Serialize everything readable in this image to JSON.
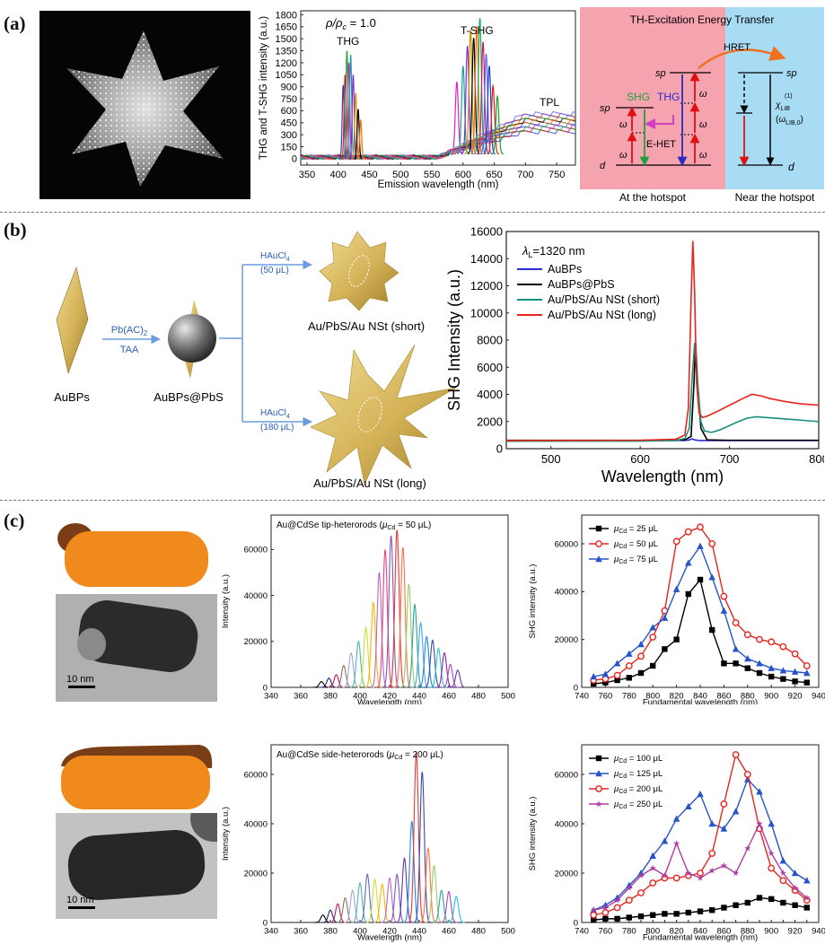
{
  "panels": {
    "a": {
      "label": "(a)",
      "spectrum": {
        "ylabel": "THG and T-SHG intensity (a.u.)",
        "xlabel": "Emission wavelength (nm)",
        "rho_label": "ρ/ρ",
        "rho_sub": "c",
        "rho_value": " = 1.0",
        "annotations": [
          "THG",
          "T-SHG",
          "TPL"
        ]
      },
      "energy": {
        "title": "TH-Excitation Energy Transfer",
        "hret": "HRET",
        "ehet": "E-HET",
        "shg": "SHG",
        "thg": "THG",
        "sp": "sp",
        "d": "d",
        "omega": "ω",
        "chi": "χ",
        "chi_sup": "(1)",
        "chi_sub": "LIB",
        "omega_lib": "(ω",
        "omega_lib_sub": "LIB,0",
        "omega_lib_end": ")",
        "at_hotspot": "At the hotspot",
        "near_hotspot": "Near the hotspot"
      }
    },
    "b": {
      "label": "(b)",
      "scheme": {
        "reagent1_top": "Pb(AC)",
        "reagent1_sub": "2",
        "reagent1_bottom": "TAA",
        "haucl4": "HAuCl",
        "haucl4_sub": "4",
        "vol_short": "(50 μL)",
        "vol_long": "(180 μL)",
        "aubps": "AuBPs",
        "aubps_pbs": "AuBPs@PbS",
        "nst_short": "Au/PbS/Au NSt (short)",
        "nst_long": "Au/PbS/Au NSt (long)"
      },
      "lambda_label": "λ",
      "lambda_sub": "L",
      "lambda_value": "=1320 nm"
    },
    "c": {
      "label": "(c)",
      "scalebar": "10 nm"
    }
  },
  "chart_data": [
    {
      "id": "a-spectrum",
      "type": "line",
      "xlabel": "Emission wavelength (nm)",
      "ylabel": "THG and T-SHG intensity (a.u.)",
      "xlim": [
        340,
        780
      ],
      "ylim": [
        -80,
        1850
      ],
      "xticks": [
        350,
        400,
        450,
        500,
        550,
        600,
        650,
        700,
        750
      ],
      "yticks": [
        0,
        150,
        300,
        450,
        600,
        750,
        900,
        1050,
        1200,
        1350,
        1500,
        1650,
        1800
      ],
      "thg_peaks": [
        [
          408,
          920
        ],
        [
          411,
          1050
        ],
        [
          414,
          1350
        ],
        [
          417,
          1200
        ],
        [
          420,
          1300
        ],
        [
          424,
          1050
        ],
        [
          428,
          820
        ],
        [
          432,
          620
        ],
        [
          436,
          480
        ]
      ],
      "tshg_peaks": [
        [
          590,
          900
        ],
        [
          600,
          1100
        ],
        [
          607,
          1350
        ],
        [
          612,
          1550
        ],
        [
          617,
          1450
        ],
        [
          622,
          1600
        ],
        [
          627,
          1700
        ],
        [
          632,
          1400
        ],
        [
          637,
          1250
        ],
        [
          642,
          1100
        ],
        [
          648,
          850
        ],
        [
          655,
          720
        ]
      ],
      "tpl_level": 400,
      "colors": [
        "#1f3fd0",
        "#e0201a",
        "#22a02a",
        "#e020c8",
        "#17a0a0",
        "#7b2bd0",
        "#d09000",
        "#000000",
        "#ff6a00",
        "#18b060",
        "#c81e60",
        "#6060ff"
      ]
    },
    {
      "id": "b-shg",
      "type": "line",
      "xlabel": "Wavelength (nm)",
      "ylabel": "SHG Intensity (a.u.)",
      "xlim": [
        450,
        800
      ],
      "ylim": [
        0,
        16000
      ],
      "xticks": [
        500,
        600,
        700,
        800
      ],
      "yticks": [
        0,
        2000,
        4000,
        6000,
        8000,
        10000,
        12000,
        14000,
        16000
      ],
      "series": [
        {
          "name": "AuBPs",
          "color": "#2b2bd8",
          "x": [
            450,
            600,
            650,
            655,
            658,
            661,
            665,
            670,
            700,
            750,
            800
          ],
          "y": [
            600,
            600,
            610,
            640,
            720,
            650,
            610,
            600,
            600,
            600,
            600
          ]
        },
        {
          "name": "AuBPs@PbS",
          "color": "#000000",
          "x": [
            450,
            600,
            650,
            657,
            660,
            662,
            664,
            668,
            675,
            700,
            750,
            800
          ],
          "y": [
            620,
            620,
            650,
            900,
            4500,
            7800,
            5200,
            1500,
            650,
            620,
            620,
            620
          ]
        },
        {
          "name": "Au/PbS/Au NSt (short)",
          "color": "#17907e",
          "x": [
            450,
            600,
            640,
            650,
            655,
            658,
            661,
            664,
            668,
            672,
            680,
            690,
            700,
            710,
            720,
            730,
            740,
            760,
            780,
            800
          ],
          "y": [
            550,
            560,
            600,
            750,
            1500,
            5000,
            7800,
            5000,
            2000,
            1300,
            1200,
            1400,
            1700,
            2000,
            2250,
            2350,
            2300,
            2200,
            2100,
            2000
          ]
        },
        {
          "name": "Au/PbS/Au NSt (long)",
          "color": "#e8241e",
          "x": [
            450,
            600,
            640,
            650,
            654,
            657,
            659,
            661,
            663,
            666,
            670,
            675,
            685,
            700,
            715,
            725,
            735,
            745,
            760,
            780,
            800
          ],
          "y": [
            600,
            620,
            700,
            1000,
            3000,
            11000,
            15300,
            11500,
            5000,
            2600,
            2300,
            2400,
            2700,
            3200,
            3700,
            4000,
            3900,
            3700,
            3500,
            3300,
            3200
          ]
        }
      ]
    },
    {
      "id": "c-tip-spectra",
      "type": "line",
      "title": "Au@CdSe tip-heterorods (μCd = 50 μL)",
      "title_prefix": "Au@CdSe tip-heterorods (",
      "title_mu": "μ",
      "title_sub": "Cd",
      "title_suffix": " = 50 μL)",
      "xlabel": "Wavelength (nm)",
      "ylabel": "Intensity (a.u.)",
      "xlim": [
        340,
        500
      ],
      "ylim": [
        0,
        75000
      ],
      "xticks": [
        340,
        360,
        380,
        400,
        420,
        440,
        460,
        480,
        500
      ],
      "yticks": [
        0,
        20000,
        40000,
        60000
      ],
      "peaks": [
        [
          374,
          2500
        ],
        [
          379,
          4000
        ],
        [
          384,
          5500
        ],
        [
          389,
          9500
        ],
        [
          394,
          15000
        ],
        [
          399,
          20000
        ],
        [
          404,
          26000
        ],
        [
          409,
          37000
        ],
        [
          413,
          50000
        ],
        [
          417,
          60000
        ],
        [
          421,
          66000
        ],
        [
          425,
          68500
        ],
        [
          429,
          61000
        ],
        [
          433,
          45000
        ],
        [
          437,
          36000
        ],
        [
          441,
          28000
        ],
        [
          445,
          22000
        ],
        [
          449,
          20500
        ],
        [
          453,
          17000
        ],
        [
          457,
          15000
        ],
        [
          461,
          10000
        ],
        [
          466,
          7500
        ]
      ],
      "colors": [
        "#000000",
        "#1a237e",
        "#c2185b",
        "#8d6e63",
        "#9fa8da",
        "#4db6ac",
        "#cddc39",
        "#ffb300",
        "#ba68c8",
        "#ec407a",
        "#7e57c2",
        "#e53935",
        "#ff7043",
        "#9ccc65",
        "#26a69a",
        "#42a5f5",
        "#1e88e5",
        "#3949ab",
        "#26c6da",
        "#8e24aa",
        "#ab47bc",
        "#5e35b1"
      ]
    },
    {
      "id": "c-tip-shg",
      "type": "line",
      "xlabel": "Fundamental wavelength (nm)",
      "ylabel": "SHG intensity (a.u.)",
      "xlim": [
        740,
        940
      ],
      "ylim": [
        0,
        72000
      ],
      "xticks": [
        740,
        760,
        780,
        800,
        820,
        840,
        860,
        880,
        900,
        920,
        940
      ],
      "yticks": [
        0,
        20000,
        40000,
        60000
      ],
      "series": [
        {
          "name": "μCd = 25 μL",
          "mu_prefix": "μ",
          "mu_sub": "Cd",
          "mu_value": " = 25 μL",
          "color": "#000000",
          "marker": "square",
          "x": [
            750,
            760,
            770,
            780,
            790,
            800,
            810,
            820,
            830,
            840,
            850,
            860,
            870,
            880,
            890,
            900,
            910,
            920,
            930
          ],
          "y": [
            1500,
            2000,
            3000,
            4000,
            6000,
            9000,
            16000,
            20000,
            39000,
            45000,
            24000,
            10000,
            10000,
            8000,
            6000,
            4500,
            3500,
            2500,
            2000
          ]
        },
        {
          "name": "μCd = 50 μL",
          "mu_prefix": "μ",
          "mu_sub": "Cd",
          "mu_value": " = 50 μL",
          "color": "#e8241e",
          "marker": "circle",
          "x": [
            750,
            760,
            770,
            780,
            790,
            800,
            810,
            820,
            830,
            840,
            850,
            860,
            870,
            880,
            890,
            900,
            910,
            920,
            930
          ],
          "y": [
            3000,
            3500,
            5000,
            9000,
            13000,
            21000,
            32000,
            61000,
            65000,
            67000,
            60000,
            38000,
            27000,
            22000,
            20000,
            19000,
            17000,
            14000,
            9000
          ]
        },
        {
          "name": "μCd = 75 μL",
          "mu_prefix": "μ",
          "mu_sub": "Cd",
          "mu_value": " = 75 μL",
          "color": "#2754c8",
          "marker": "triangle",
          "x": [
            750,
            760,
            770,
            780,
            790,
            800,
            810,
            820,
            830,
            840,
            850,
            860,
            870,
            880,
            890,
            900,
            910,
            920,
            930
          ],
          "y": [
            4500,
            5500,
            10000,
            14000,
            18000,
            25000,
            29000,
            41000,
            52000,
            59000,
            46000,
            32000,
            16000,
            12000,
            10000,
            8000,
            7000,
            6500,
            6000
          ]
        }
      ]
    },
    {
      "id": "c-side-spectra",
      "type": "line",
      "title": "Au@CdSe side-heterorods (μCd = 200 μL)",
      "title_prefix": "Au@CdSe side-heterorods (",
      "title_mu": "μ",
      "title_sub": "Cd",
      "title_suffix": " = 200 μL)",
      "xlabel": "Wavelength (nm)",
      "ylabel": "Intensity (a.u.)",
      "xlim": [
        340,
        500
      ],
      "ylim": [
        0,
        72000
      ],
      "xticks": [
        340,
        360,
        380,
        400,
        420,
        440,
        460,
        480,
        500
      ],
      "yticks": [
        0,
        20000,
        40000,
        60000
      ],
      "peaks": [
        [
          375,
          3000
        ],
        [
          380,
          5000
        ],
        [
          385,
          7500
        ],
        [
          390,
          10000
        ],
        [
          395,
          13000
        ],
        [
          400,
          16000
        ],
        [
          405,
          19500
        ],
        [
          410,
          17500
        ],
        [
          415,
          15500
        ],
        [
          420,
          18000
        ],
        [
          425,
          19500
        ],
        [
          430,
          26000
        ],
        [
          435,
          41000
        ],
        [
          438,
          69000
        ],
        [
          442,
          61000
        ],
        [
          446,
          30000
        ],
        [
          450,
          23000
        ],
        [
          455,
          13000
        ],
        [
          460,
          12500
        ],
        [
          465,
          10500
        ]
      ],
      "colors": [
        "#000000",
        "#1a237e",
        "#c2185b",
        "#8d6e63",
        "#9fa8da",
        "#4db6ac",
        "#5c6bc0",
        "#cddc39",
        "#ffb300",
        "#ba68c8",
        "#7e57c2",
        "#5e35b1",
        "#1e88e5",
        "#e53935",
        "#3949ab",
        "#ff7043",
        "#9ccc65",
        "#26a69a",
        "#ab47bc",
        "#26c6da"
      ]
    },
    {
      "id": "c-side-shg",
      "type": "line",
      "xlabel": "Fundamental wavelength (nm)",
      "ylabel": "SHG intensity (a.u.)",
      "xlim": [
        740,
        940
      ],
      "ylim": [
        0,
        72000
      ],
      "xticks": [
        740,
        750,
        760,
        770,
        780,
        790,
        800,
        810,
        820,
        830,
        840,
        850,
        860,
        870,
        880,
        890,
        900,
        910,
        920,
        930,
        940
      ],
      "xticklabels": [
        740,
        760,
        780,
        800,
        820,
        840,
        860,
        880,
        900,
        920,
        940
      ],
      "yticks": [
        0,
        20000,
        40000,
        60000
      ],
      "series": [
        {
          "name": "μCd = 100 μL",
          "mu_prefix": "μ",
          "mu_sub": "Cd",
          "mu_value": " = 100 μL",
          "color": "#000000",
          "marker": "square",
          "x": [
            750,
            760,
            770,
            780,
            790,
            800,
            810,
            820,
            830,
            840,
            850,
            860,
            870,
            880,
            890,
            900,
            910,
            920,
            930
          ],
          "y": [
            1000,
            1500,
            1500,
            2000,
            2500,
            3000,
            3500,
            3500,
            4000,
            4500,
            5000,
            6000,
            7000,
            8000,
            10000,
            9500,
            8000,
            7000,
            6000
          ]
        },
        {
          "name": "μCd = 125 μL",
          "mu_prefix": "μ",
          "mu_sub": "Cd",
          "mu_value": " = 125 μL",
          "color": "#2754c8",
          "marker": "triangle",
          "x": [
            750,
            760,
            770,
            780,
            790,
            800,
            810,
            820,
            830,
            840,
            850,
            860,
            870,
            880,
            890,
            900,
            910,
            920,
            930
          ],
          "y": [
            5000,
            7000,
            10000,
            15000,
            20000,
            27000,
            33000,
            42000,
            47000,
            52000,
            40000,
            38000,
            45000,
            58000,
            53000,
            40000,
            25000,
            20000,
            17000
          ]
        },
        {
          "name": "μCd = 200 μL",
          "mu_prefix": "μ",
          "mu_sub": "Cd",
          "mu_value": " = 200 μL",
          "color": "#e8241e",
          "marker": "circle",
          "x": [
            750,
            760,
            770,
            780,
            790,
            800,
            810,
            820,
            830,
            840,
            850,
            860,
            870,
            880,
            890,
            900,
            910,
            920,
            930
          ],
          "y": [
            3000,
            4000,
            6000,
            9000,
            12000,
            16000,
            18000,
            18000,
            19000,
            20000,
            28000,
            48000,
            68000,
            60000,
            38000,
            22000,
            17000,
            13000,
            9000
          ]
        },
        {
          "name": "μCd = 250 μL",
          "mu_prefix": "μ",
          "mu_sub": "Cd",
          "mu_value": " = 250 μL",
          "color": "#b03aa0",
          "marker": "star",
          "x": [
            750,
            760,
            770,
            780,
            790,
            800,
            810,
            820,
            830,
            840,
            850,
            860,
            870,
            880,
            890,
            900,
            910,
            920,
            930
          ],
          "y": [
            5000,
            6000,
            9000,
            14000,
            19000,
            22000,
            19000,
            32000,
            20000,
            18000,
            21000,
            23000,
            20000,
            30000,
            40000,
            28000,
            20000,
            14000,
            10000
          ]
        }
      ]
    }
  ]
}
